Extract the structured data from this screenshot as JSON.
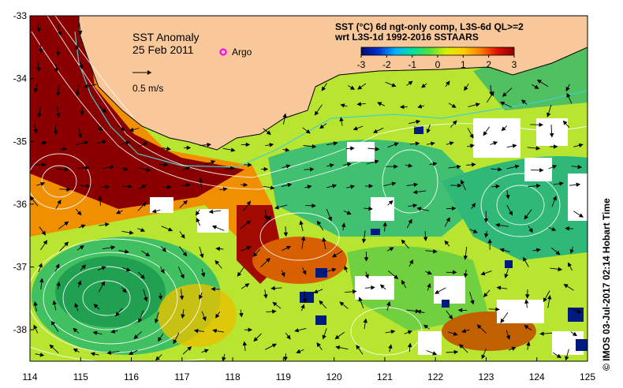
{
  "figure": {
    "title": "SST Anomaly",
    "date": "25 Feb 2011",
    "argo_label": "Argo",
    "velocity_scale_label": "0.5 m/s",
    "description_line1": "SST (°C) 6d ngt-only comp, L3S-6d QL>=2",
    "description_line2": "wrt L3S-1d 1992-2016 SSTAARS",
    "credit": "© IMOS 03-Jul-2017 02:14 Hobart Time"
  },
  "colorbar": {
    "min": -3,
    "max": 3,
    "tick_labels": [
      "-3",
      "-2",
      "-1",
      "0",
      "1",
      "2",
      "3"
    ],
    "colors": [
      "#000a70",
      "#0030d0",
      "#00b0ff",
      "#00e0a0",
      "#50e040",
      "#d8f000",
      "#ffd000",
      "#ff8000",
      "#e01000",
      "#900000"
    ]
  },
  "axes": {
    "lon_range": [
      114,
      125
    ],
    "lat_range": [
      -38.5,
      -33
    ],
    "lon_ticks": [
      "114",
      "115",
      "116",
      "117",
      "118",
      "119",
      "120",
      "121",
      "122",
      "123",
      "124",
      "125"
    ],
    "lat_ticks": [
      "-33",
      "-34",
      "-35",
      "-36",
      "-37",
      "-38"
    ]
  },
  "colors": {
    "land": "#f8c89a",
    "missing_data": "#ffffff",
    "contours": "#ffffff",
    "coast_isobath": "#40d0d0",
    "argo_marker": "#ff00ff"
  }
}
